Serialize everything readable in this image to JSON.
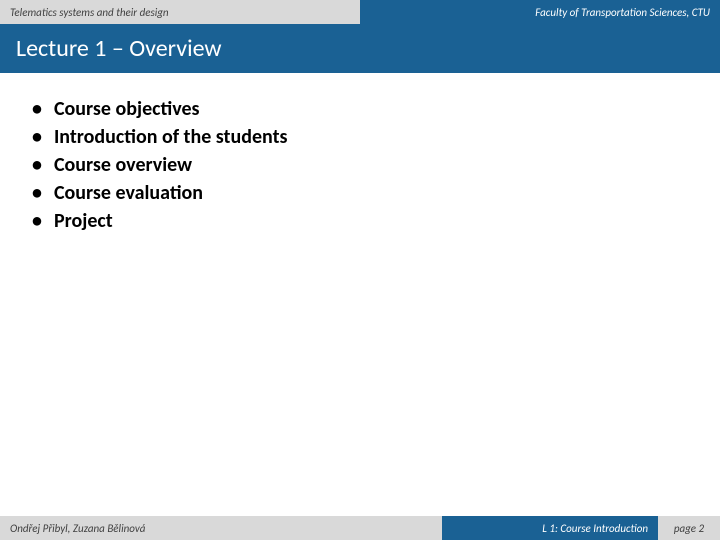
{
  "header": {
    "left": "Telematics systems and their design",
    "right": "Faculty of Transportation Sciences, CTU"
  },
  "title": "Lecture 1 – Overview",
  "bullets": [
    "Course objectives",
    "Introduction of the students",
    "Course overview",
    "Course evaluation",
    "Project"
  ],
  "footer": {
    "left": "Ondřej Přibyl, Zuzana Bělinová",
    "mid": "L 1: Course Introduction",
    "right": "page 2"
  },
  "colors": {
    "primary": "#1a6194",
    "grey": "#d9d9d9",
    "text_dark": "#404040",
    "text_light": "#ffffff",
    "content_text": "#000000"
  },
  "typography": {
    "header_fontsize": 11,
    "title_fontsize": 24,
    "bullet_fontsize": 20,
    "footer_fontsize": 11
  }
}
